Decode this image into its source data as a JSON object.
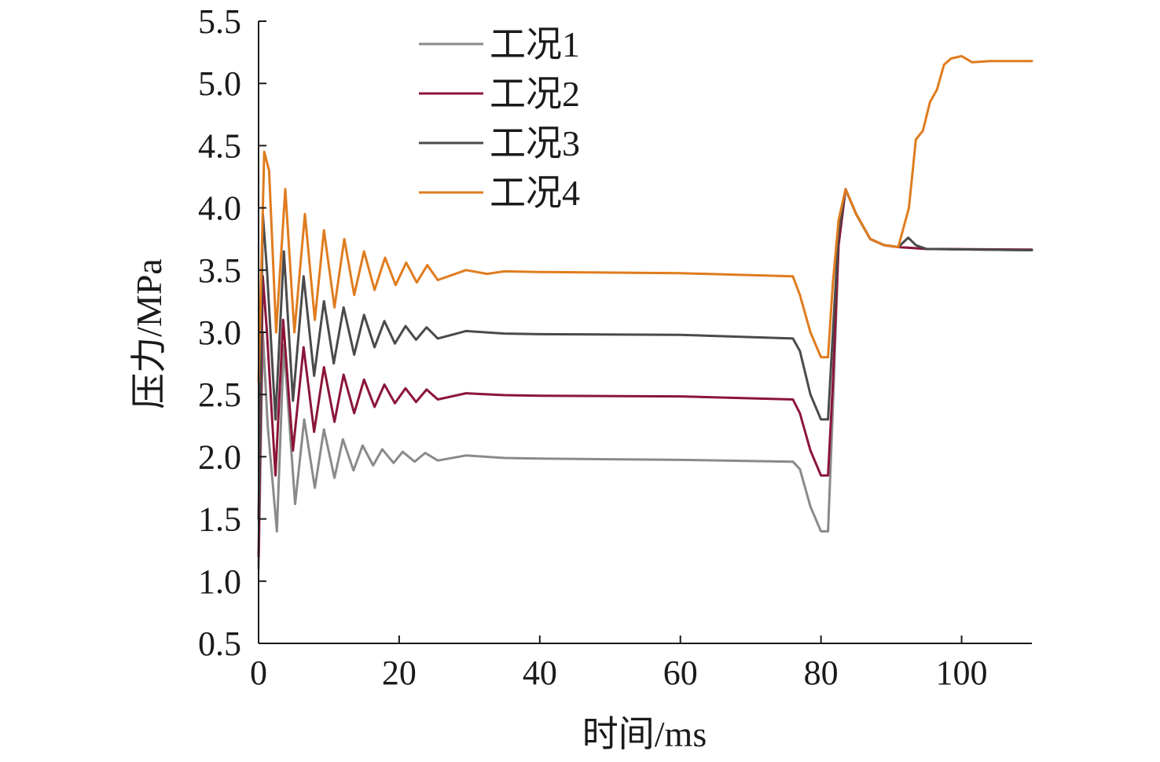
{
  "chart_data": {
    "type": "line",
    "title": "",
    "xlabel": "时间/ms",
    "ylabel": "压力/MPa",
    "xlim": [
      0,
      110
    ],
    "ylim": [
      0.5,
      5.5
    ],
    "xticks": [
      0,
      20,
      40,
      60,
      80,
      100
    ],
    "xtick_labels": [
      "0",
      "20",
      "40",
      "60",
      "80",
      "100"
    ],
    "yticks": [
      0.5,
      1.0,
      1.5,
      2.0,
      2.5,
      3.0,
      3.5,
      4.0,
      4.5,
      5.0,
      5.5
    ],
    "ytick_labels": [
      "0.5",
      "1.0",
      "1.5",
      "2.0",
      "2.5",
      "3.0",
      "3.5",
      "4.0",
      "4.5",
      "5.0",
      "5.5"
    ],
    "grid": false,
    "legend_position": "top-center",
    "series": [
      {
        "name": "工况1",
        "color": "#8a8a8a",
        "points": [
          [
            0.0,
            1.1
          ],
          [
            0.6,
            3.0
          ],
          [
            1.3,
            2.25
          ],
          [
            2.6,
            1.4
          ],
          [
            3.6,
            2.9
          ],
          [
            5.2,
            1.62
          ],
          [
            6.5,
            2.3
          ],
          [
            8.0,
            1.75
          ],
          [
            9.3,
            2.22
          ],
          [
            10.8,
            1.83
          ],
          [
            12.0,
            2.14
          ],
          [
            13.5,
            1.89
          ],
          [
            14.8,
            2.09
          ],
          [
            16.3,
            1.93
          ],
          [
            17.6,
            2.06
          ],
          [
            19.2,
            1.95
          ],
          [
            20.5,
            2.04
          ],
          [
            22.2,
            1.96
          ],
          [
            23.7,
            2.03
          ],
          [
            25.5,
            1.97
          ],
          [
            29.5,
            2.01
          ],
          [
            35,
            1.99
          ],
          [
            40,
            1.985
          ],
          [
            60,
            1.975
          ],
          [
            76,
            1.96
          ],
          [
            77,
            1.9
          ],
          [
            78.5,
            1.6
          ],
          [
            80,
            1.4
          ],
          [
            81,
            1.4
          ],
          [
            81.7,
            2.4
          ],
          [
            82.5,
            3.7
          ],
          [
            83.5,
            4.15
          ],
          [
            85,
            3.95
          ],
          [
            87,
            3.75
          ],
          [
            89,
            3.7
          ],
          [
            91,
            3.685
          ],
          [
            95,
            3.67
          ],
          [
            110,
            3.66
          ]
        ]
      },
      {
        "name": "工况2",
        "color": "#8b1538",
        "points": [
          [
            0.0,
            1.2
          ],
          [
            0.6,
            3.45
          ],
          [
            1.2,
            3.0
          ],
          [
            2.4,
            1.85
          ],
          [
            3.5,
            3.1
          ],
          [
            4.9,
            2.05
          ],
          [
            6.4,
            2.88
          ],
          [
            7.9,
            2.2
          ],
          [
            9.3,
            2.72
          ],
          [
            10.8,
            2.28
          ],
          [
            12.1,
            2.66
          ],
          [
            13.6,
            2.35
          ],
          [
            15.0,
            2.62
          ],
          [
            16.5,
            2.4
          ],
          [
            17.9,
            2.58
          ],
          [
            19.4,
            2.43
          ],
          [
            20.9,
            2.55
          ],
          [
            22.4,
            2.44
          ],
          [
            23.9,
            2.54
          ],
          [
            25.5,
            2.46
          ],
          [
            29.5,
            2.51
          ],
          [
            35,
            2.495
          ],
          [
            40,
            2.49
          ],
          [
            60,
            2.485
          ],
          [
            76,
            2.46
          ],
          [
            77,
            2.35
          ],
          [
            78.5,
            2.05
          ],
          [
            80,
            1.85
          ],
          [
            81,
            1.85
          ],
          [
            81.7,
            2.6
          ],
          [
            82.5,
            3.7
          ],
          [
            83.5,
            4.15
          ],
          [
            85,
            3.95
          ],
          [
            87,
            3.75
          ],
          [
            89,
            3.7
          ],
          [
            91,
            3.685
          ],
          [
            95,
            3.67
          ],
          [
            110,
            3.665
          ]
        ]
      },
      {
        "name": "工况3",
        "color": "#4a4a4a",
        "points": [
          [
            0.0,
            1.5
          ],
          [
            0.6,
            3.95
          ],
          [
            1.2,
            3.5
          ],
          [
            2.4,
            2.3
          ],
          [
            3.6,
            3.65
          ],
          [
            4.9,
            2.45
          ],
          [
            6.4,
            3.45
          ],
          [
            7.9,
            2.65
          ],
          [
            9.3,
            3.25
          ],
          [
            10.7,
            2.75
          ],
          [
            12.1,
            3.2
          ],
          [
            13.6,
            2.82
          ],
          [
            15.0,
            3.14
          ],
          [
            16.5,
            2.88
          ],
          [
            17.9,
            3.09
          ],
          [
            19.4,
            2.91
          ],
          [
            20.9,
            3.05
          ],
          [
            22.4,
            2.94
          ],
          [
            23.9,
            3.04
          ],
          [
            25.5,
            2.95
          ],
          [
            29.5,
            3.01
          ],
          [
            35,
            2.99
          ],
          [
            40,
            2.985
          ],
          [
            60,
            2.98
          ],
          [
            76,
            2.95
          ],
          [
            77,
            2.85
          ],
          [
            78.5,
            2.5
          ],
          [
            80,
            2.3
          ],
          [
            81,
            2.3
          ],
          [
            81.7,
            3.0
          ],
          [
            82.5,
            3.8
          ],
          [
            83.5,
            4.15
          ],
          [
            85,
            3.95
          ],
          [
            87,
            3.75
          ],
          [
            89,
            3.7
          ],
          [
            91,
            3.685
          ],
          [
            92.4,
            3.76
          ],
          [
            93.5,
            3.7
          ],
          [
            95,
            3.67
          ],
          [
            110,
            3.66
          ]
        ]
      },
      {
        "name": "工况4",
        "color": "#e07c1e",
        "points": [
          [
            0.0,
            2.6
          ],
          [
            0.8,
            4.45
          ],
          [
            1.5,
            4.3
          ],
          [
            2.5,
            3.0
          ],
          [
            3.8,
            4.15
          ],
          [
            5.1,
            3.0
          ],
          [
            6.6,
            3.95
          ],
          [
            8.0,
            3.1
          ],
          [
            9.3,
            3.82
          ],
          [
            10.8,
            3.2
          ],
          [
            12.2,
            3.75
          ],
          [
            13.6,
            3.3
          ],
          [
            15.0,
            3.65
          ],
          [
            16.5,
            3.34
          ],
          [
            18.0,
            3.6
          ],
          [
            19.5,
            3.38
          ],
          [
            21.0,
            3.56
          ],
          [
            22.5,
            3.4
          ],
          [
            24.0,
            3.54
          ],
          [
            25.5,
            3.42
          ],
          [
            29.5,
            3.5
          ],
          [
            32.5,
            3.47
          ],
          [
            35,
            3.49
          ],
          [
            40,
            3.485
          ],
          [
            60,
            3.475
          ],
          [
            76,
            3.45
          ],
          [
            77,
            3.3
          ],
          [
            78.5,
            3.0
          ],
          [
            80,
            2.8
          ],
          [
            81,
            2.8
          ],
          [
            81.7,
            3.4
          ],
          [
            82.5,
            3.9
          ],
          [
            83.5,
            4.15
          ],
          [
            85,
            3.95
          ],
          [
            87,
            3.75
          ],
          [
            89,
            3.7
          ],
          [
            91,
            3.685
          ],
          [
            92.5,
            4.0
          ],
          [
            93.5,
            4.55
          ],
          [
            94.5,
            4.62
          ],
          [
            95.5,
            4.85
          ],
          [
            96.5,
            4.95
          ],
          [
            97.5,
            5.15
          ],
          [
            98.5,
            5.2
          ],
          [
            100,
            5.22
          ],
          [
            101.5,
            5.17
          ],
          [
            104,
            5.18
          ],
          [
            110,
            5.18
          ]
        ]
      }
    ]
  }
}
